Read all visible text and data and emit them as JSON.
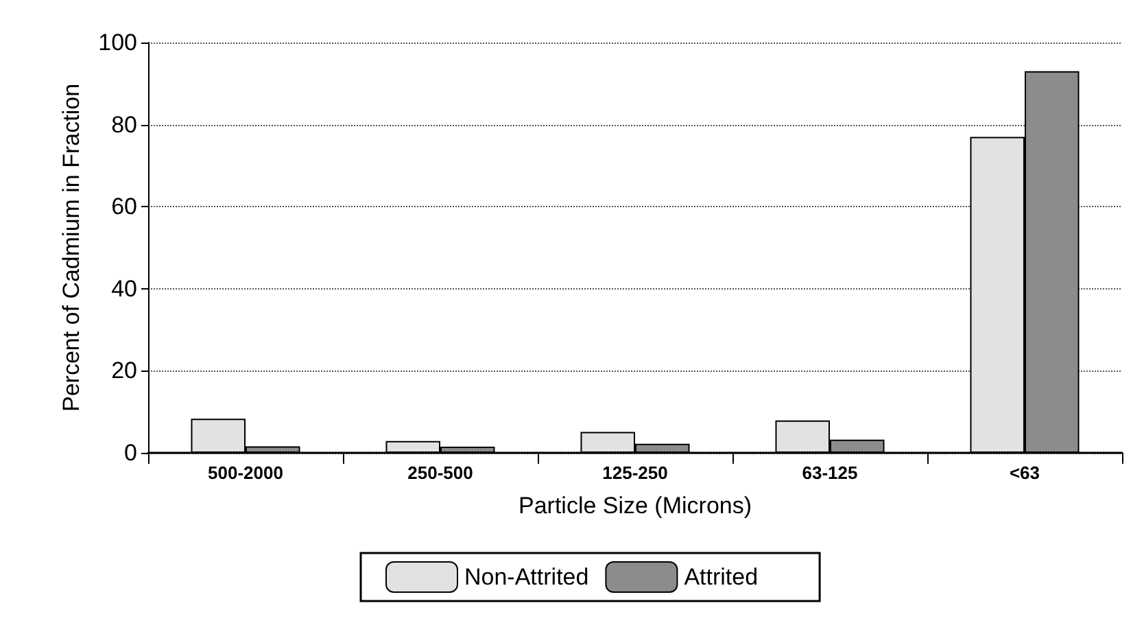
{
  "chart_data": {
    "type": "bar",
    "xlabel": "Particle Size (Microns)",
    "ylabel": "Percent of Cadmium in Fraction",
    "categories": [
      "500-2000",
      "250-500",
      "125-250",
      "63-125",
      "<63"
    ],
    "series": [
      {
        "name": "Non-Attrited",
        "color": "#e2e2e2",
        "values": [
          8.3,
          2.9,
          5.1,
          7.9,
          77
        ]
      },
      {
        "name": "Attrited",
        "color": "#8c8c8c",
        "values": [
          1.6,
          1.5,
          2.2,
          3.2,
          93
        ]
      }
    ],
    "ylim": [
      0,
      100
    ],
    "yticks": [
      0,
      20,
      40,
      60,
      80,
      100
    ],
    "grid": "y",
    "legend": "bottom"
  }
}
